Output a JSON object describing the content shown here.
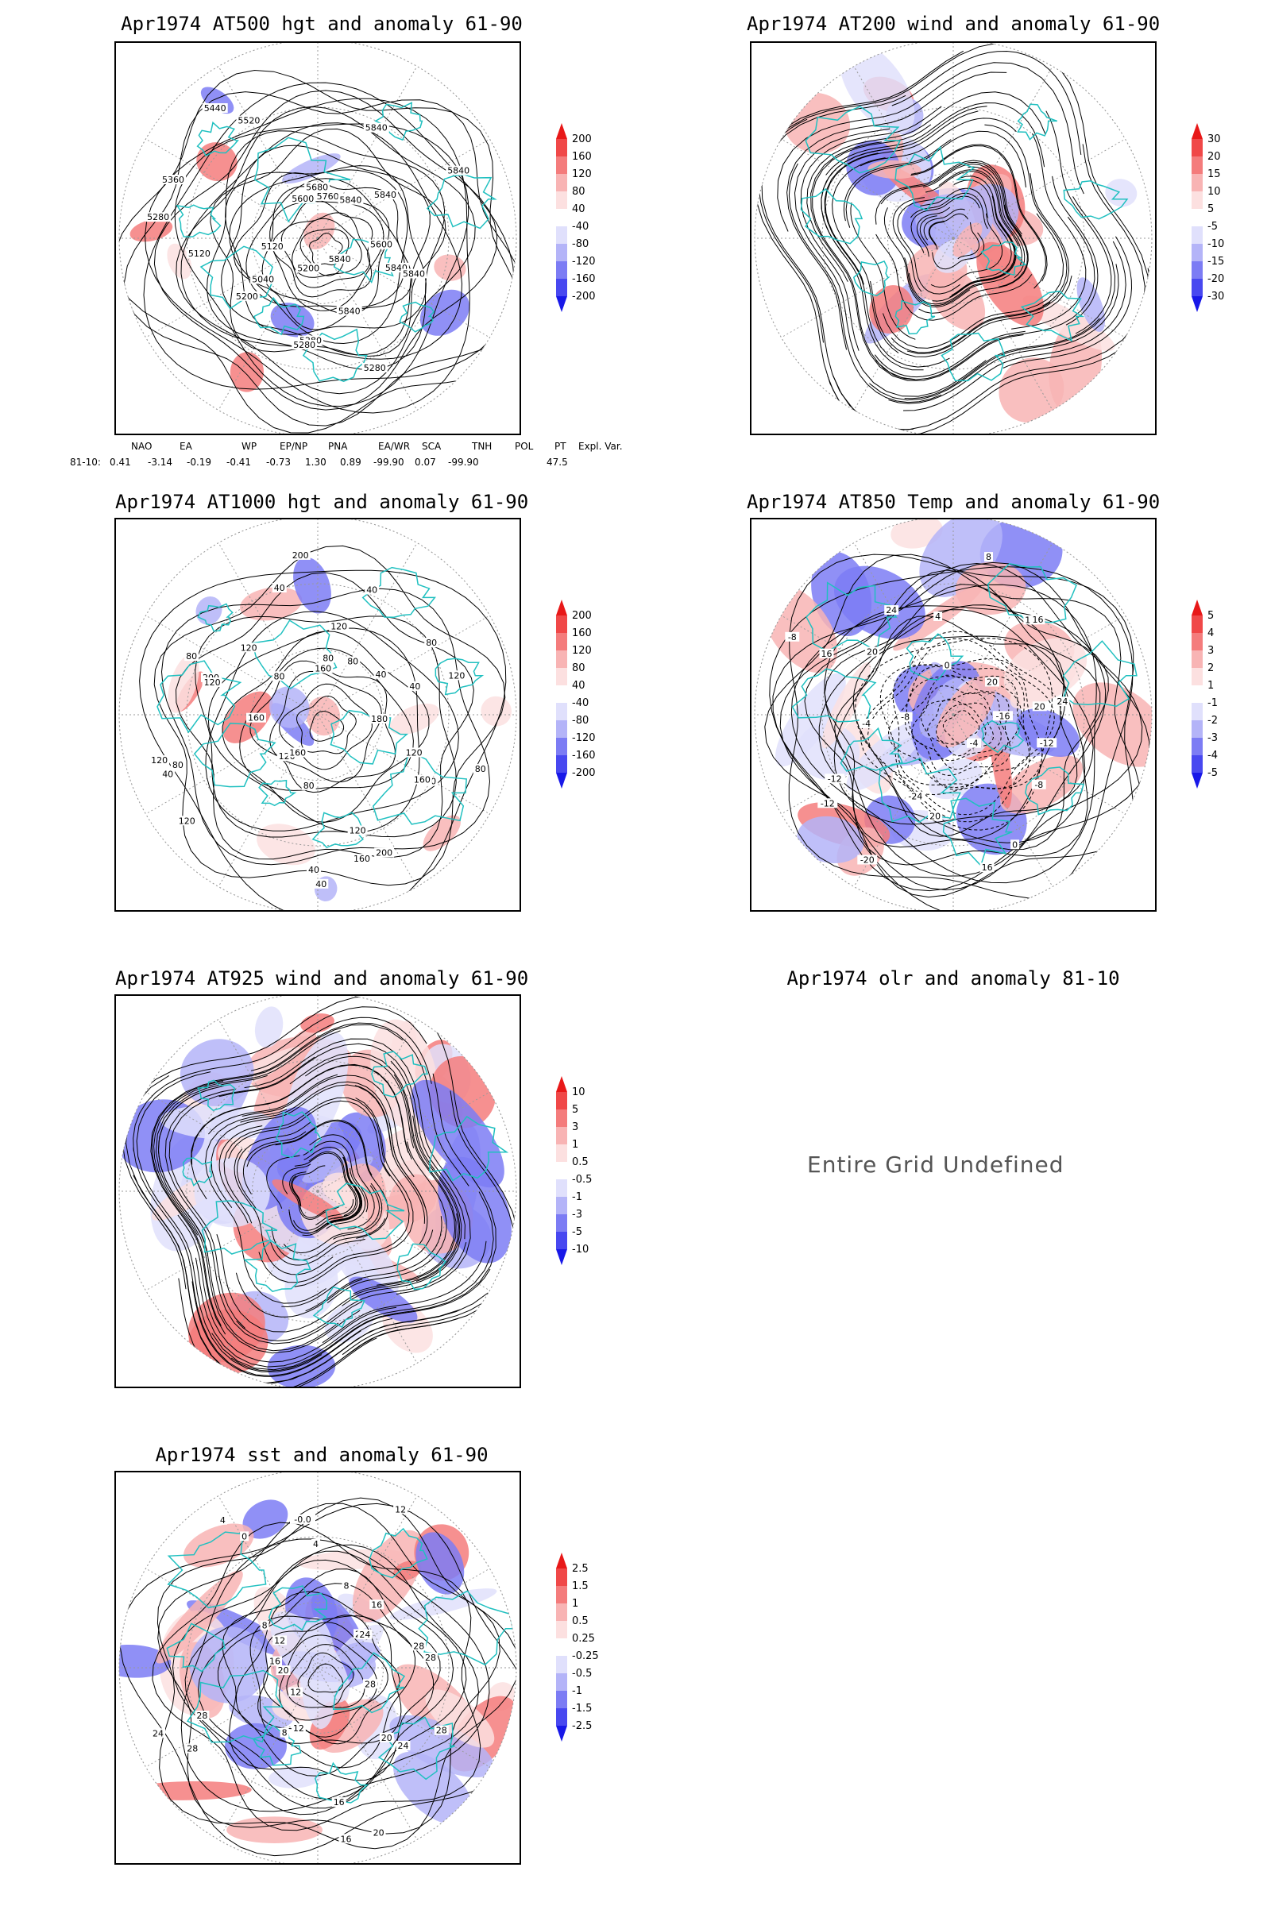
{
  "panels": [
    {
      "id": "p500",
      "title": "Apr1974 AT500 hgt and anomaly 61-90",
      "contour_labels": [
        "5840",
        "5840",
        "5840",
        "5840",
        "5280",
        "5280",
        "5280",
        "5200",
        "5200",
        "5040",
        "5120",
        "5120",
        "5280",
        "5360",
        "5440",
        "5520",
        "5600",
        "5680",
        "5760",
        "5840",
        "5840",
        "5840",
        "5840",
        "5600"
      ],
      "colorbar": [
        "200",
        "160",
        "120",
        "80",
        "40",
        "-40",
        "-80",
        "-120",
        "-160",
        "-200"
      ]
    },
    {
      "id": "p200",
      "title": "Apr1974 AT200 wind and anomaly 61-90",
      "contour_labels": [],
      "colorbar": [
        "30",
        "20",
        "15",
        "10",
        "5",
        "-5",
        "-10",
        "-15",
        "-20",
        "-30"
      ]
    },
    {
      "id": "p1000",
      "title": "Apr1974 AT1000 hgt and anomaly 61-90",
      "contour_labels": [
        "80",
        "120",
        "200",
        "160",
        "200",
        "160",
        "120",
        "40",
        "40",
        "80",
        "120",
        "160",
        "120",
        "80",
        "40",
        "120",
        "160",
        "200",
        "120",
        "80",
        "120",
        "80",
        "40",
        "200",
        "160",
        "120",
        "80",
        "40",
        "80",
        "80",
        "40",
        "40",
        "120",
        "180"
      ],
      "colorbar": [
        "200",
        "160",
        "120",
        "80",
        "40",
        "-40",
        "-80",
        "-120",
        "-160",
        "-200"
      ]
    },
    {
      "id": "p850",
      "title": "Apr1974 AT850 Temp and anomaly 61-90",
      "contour_labels": [
        "-16",
        "-12",
        "-8",
        "-4",
        "0",
        "16",
        "20",
        "-24",
        "-20",
        "-12",
        "-12",
        "-8",
        "-4",
        "-8",
        "16",
        "20",
        "24",
        "0",
        "4",
        "8",
        "12",
        "16",
        "20",
        "24",
        "20"
      ],
      "colorbar": [
        "5",
        "4",
        "3",
        "2",
        "1",
        "-1",
        "-2",
        "-3",
        "-4",
        "-5"
      ]
    },
    {
      "id": "p925",
      "title": "Apr1974 AT925 wind and anomaly 61-90",
      "contour_labels": [],
      "colorbar": [
        "10",
        "5",
        "3",
        "1",
        "0.5",
        "-0.5",
        "-1",
        "-3",
        "-5",
        "-10"
      ]
    },
    {
      "id": "polr",
      "title": "Apr1974 olr and anomaly 81-10",
      "undefined_text": "Entire Grid Undefined"
    },
    {
      "id": "psst",
      "title": "Apr1974 sst and anomaly 61-90",
      "contour_labels": [
        "28",
        "28",
        "24",
        "20",
        "20",
        "16",
        "16",
        "12",
        "8",
        "12",
        "28",
        "28",
        "24",
        "20",
        "16",
        "12",
        "8",
        "4",
        "0",
        "-0.0",
        "4",
        "8",
        "12",
        "16",
        "20",
        "24",
        "28",
        "28"
      ],
      "colorbar": [
        "2.5",
        "1.5",
        "1",
        "0.5",
        "0.25",
        "-0.25",
        "-0.5",
        "-1",
        "-1.5",
        "-2.5"
      ]
    }
  ],
  "teleconnections": {
    "headers": [
      "NAO",
      "EA",
      "WP",
      "EP/NP",
      "PNA",
      "EA/WR",
      "SCA",
      "TNH",
      "POL",
      "PT",
      "Expl. Var."
    ],
    "row_label": "81-10:",
    "values": [
      "0.41",
      "-3.14",
      "-0.19",
      "-0.41",
      "-0.73",
      "1.30",
      "0.89",
      "-99.90",
      "0.07",
      "-99.90",
      "47.5"
    ]
  },
  "colors": {
    "land": "#20c0c0",
    "warm": "#e83030",
    "cool": "#3040e8",
    "contour": "#000000"
  }
}
